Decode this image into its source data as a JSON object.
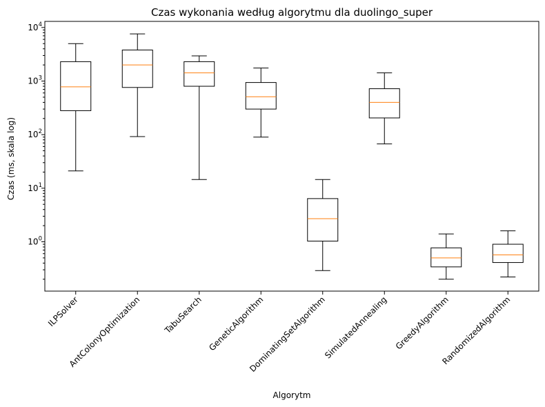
{
  "chart_data": {
    "type": "box",
    "title": "Czas wykonania według algorytmu dla duolingo_super",
    "xlabel": "Algorytm",
    "ylabel": "Czas (ms, skala log)",
    "yscale": "log",
    "ylim": [
      0.12,
      13000
    ],
    "yticks": [
      {
        "value": 1,
        "base": "10",
        "exp": "0"
      },
      {
        "value": 10,
        "base": "10",
        "exp": "1"
      },
      {
        "value": 100,
        "base": "10",
        "exp": "2"
      },
      {
        "value": 1000,
        "base": "10",
        "exp": "3"
      },
      {
        "value": 10000,
        "base": "10",
        "exp": "4"
      }
    ],
    "grid": false,
    "colors": {
      "box": "#000000",
      "median": "#ff7f0e"
    },
    "categories": [
      "ILPSolver",
      "AntColonyOptimization",
      "TabuSearch",
      "GeneticAlgorithm",
      "DominatingSetAlgorithm",
      "SimulatedAnnealing",
      "GreedyAlgorithm",
      "RandomizedAlgorithm"
    ],
    "boxes": [
      {
        "whisker_low": 21,
        "q1": 280,
        "median": 780,
        "q3": 2300,
        "whisker_high": 5000
      },
      {
        "whisker_low": 92,
        "q1": 760,
        "median": 2000,
        "q3": 3800,
        "whisker_high": 7600
      },
      {
        "whisker_low": 14.5,
        "q1": 800,
        "median": 1420,
        "q3": 2300,
        "whisker_high": 2950
      },
      {
        "whisker_low": 90,
        "q1": 300,
        "median": 510,
        "q3": 940,
        "whisker_high": 1750
      },
      {
        "whisker_low": 0.29,
        "q1": 1.03,
        "median": 2.7,
        "q3": 6.4,
        "whisker_high": 14.5
      },
      {
        "whisker_low": 67,
        "q1": 205,
        "median": 400,
        "q3": 720,
        "whisker_high": 1420
      },
      {
        "whisker_low": 0.2,
        "q1": 0.34,
        "median": 0.5,
        "q3": 0.77,
        "whisker_high": 1.4
      },
      {
        "whisker_low": 0.22,
        "q1": 0.41,
        "median": 0.57,
        "q3": 0.9,
        "whisker_high": 1.6
      }
    ]
  }
}
